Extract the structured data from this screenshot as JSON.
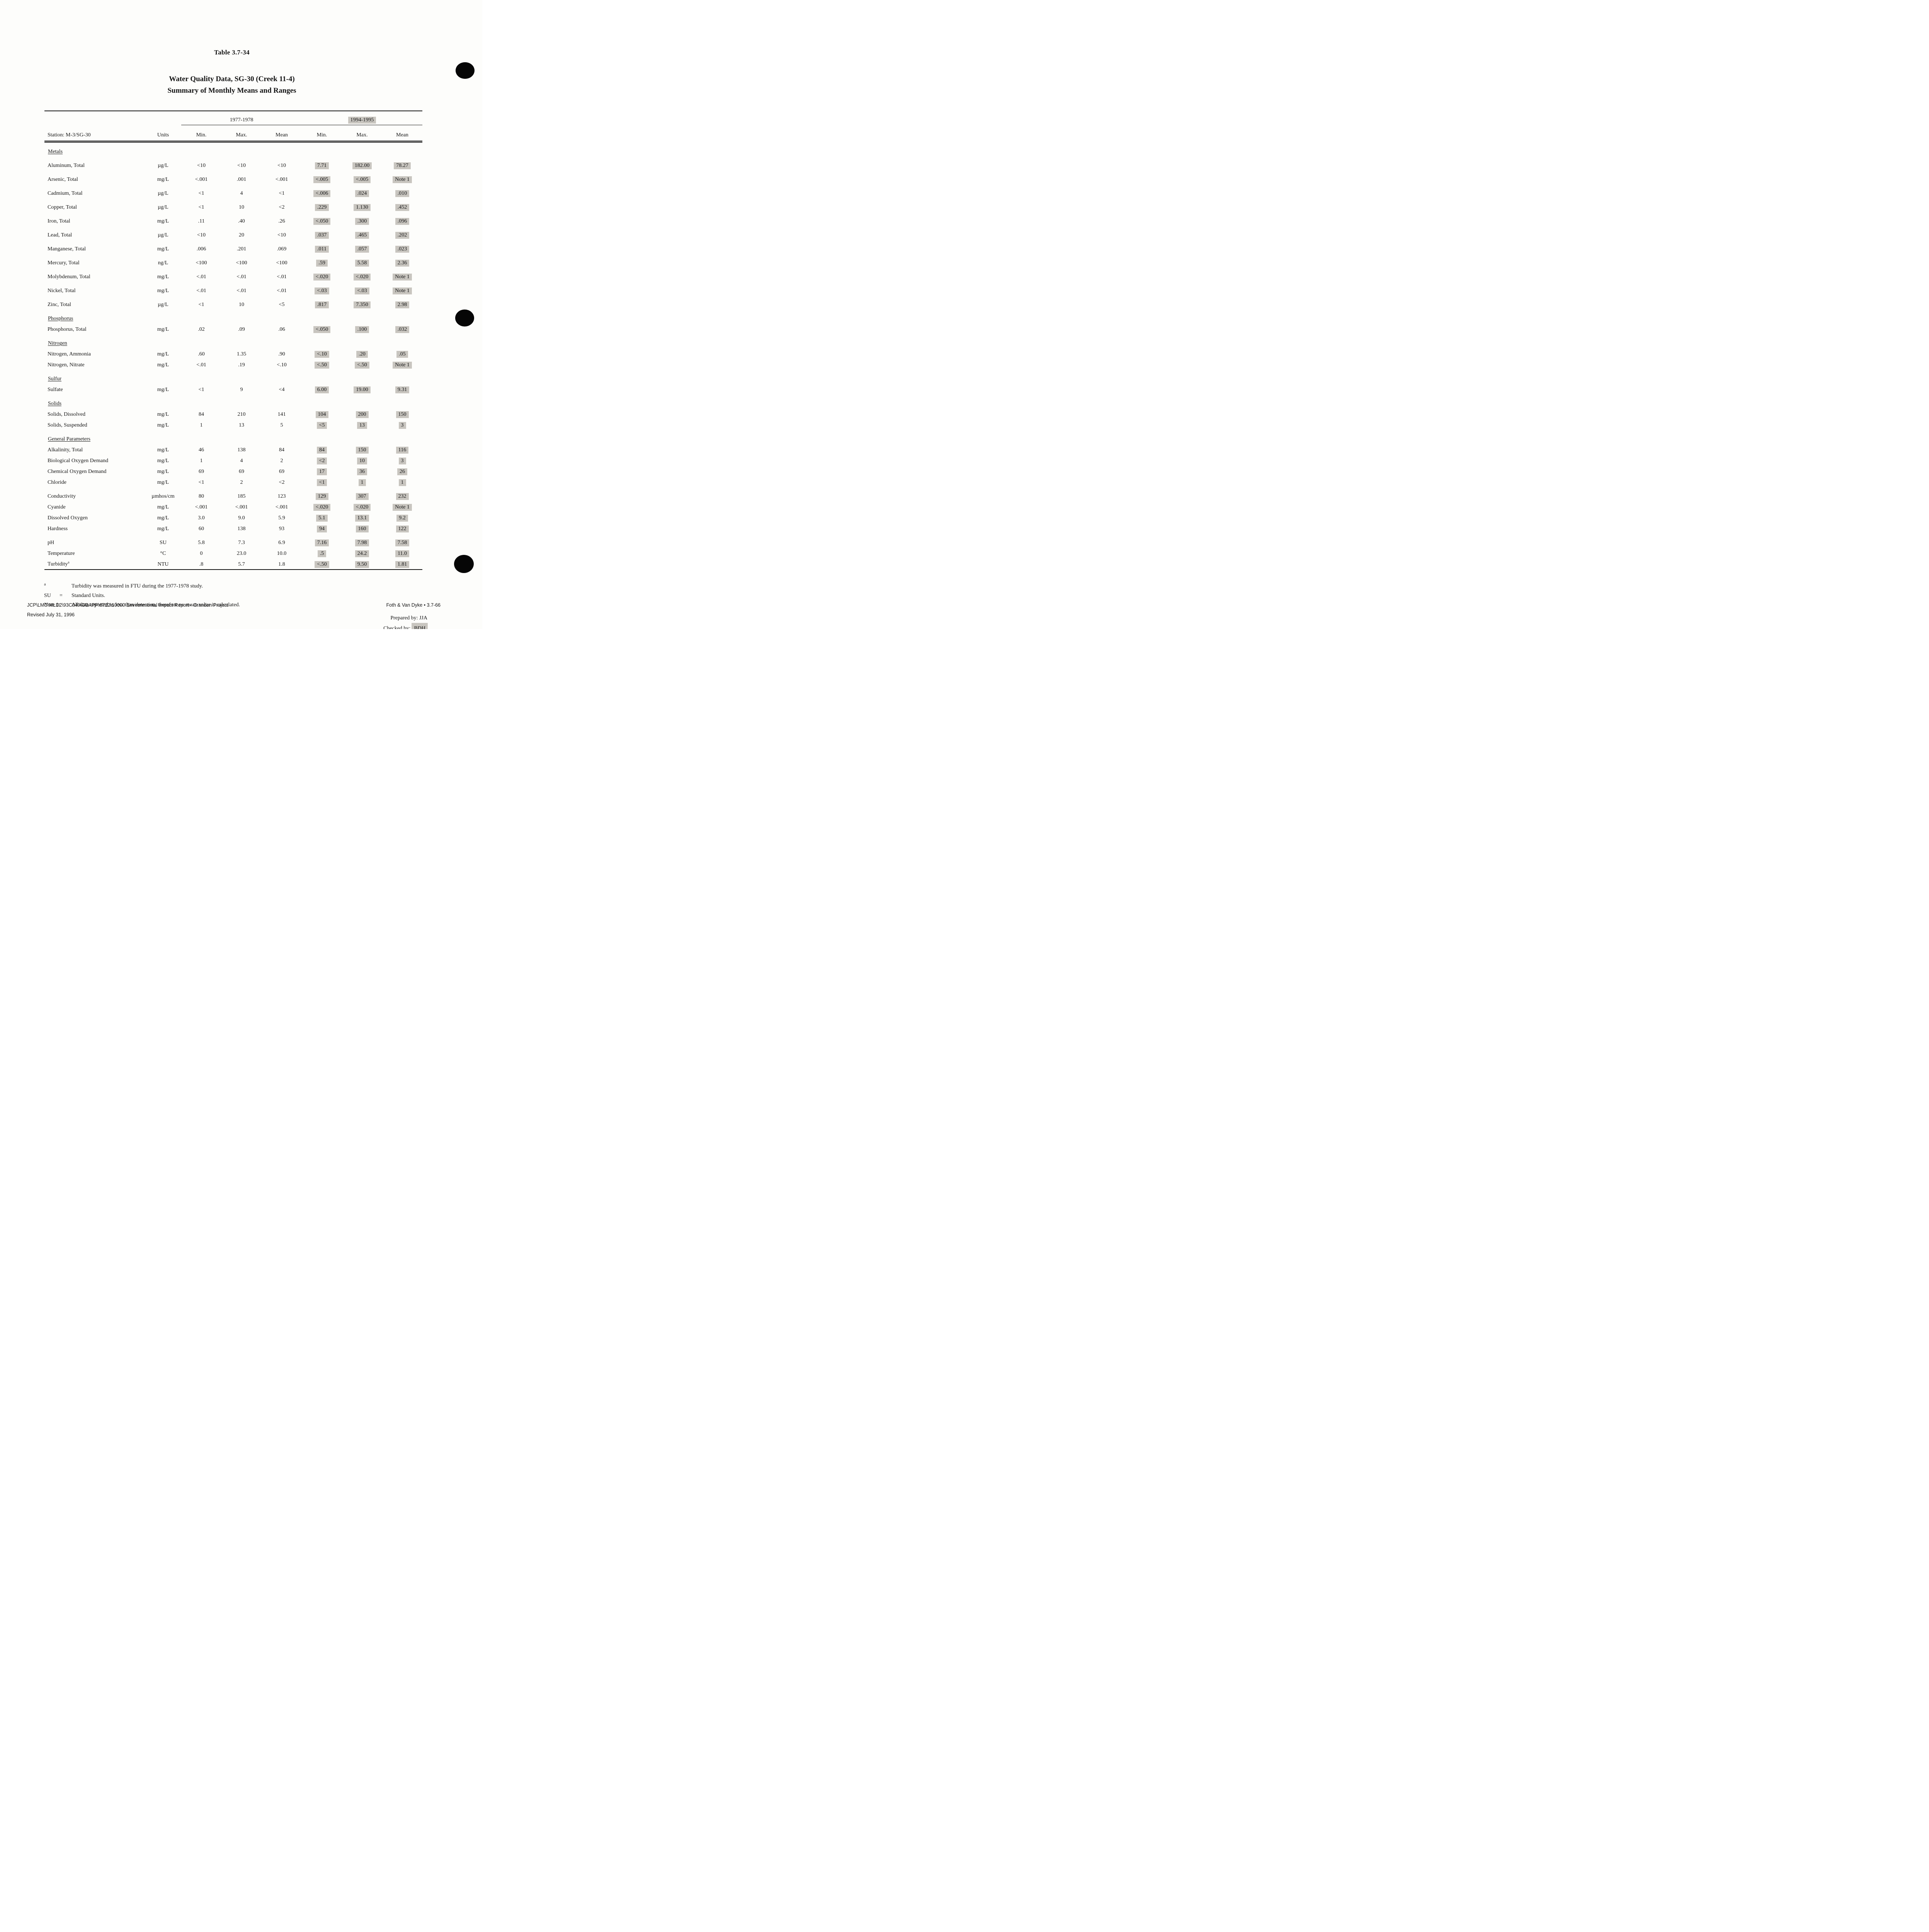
{
  "colors": {
    "paper": "#fdfdfb",
    "ink": "#141414",
    "highlight": "#c8c5bf"
  },
  "page": {
    "title": "Table 3.7-34",
    "subtitle_line1": "Water Quality Data, SG-30 (Creek 11-4)",
    "subtitle_line2": "Summary of Monthly Means and Ranges"
  },
  "table": {
    "period1": "1977-1978",
    "period2": "1994-1995",
    "station_label": "Station: M-3/SG-30",
    "units_label": "Units",
    "col_headers": [
      "Min.",
      "Max.",
      "Mean",
      "Min.",
      "Max.",
      "Mean"
    ],
    "sections": [
      {
        "name": "Metals",
        "spacing": "wide",
        "rows": [
          {
            "param": "Aluminum, Total",
            "units": "µg/L",
            "v1": [
              "<10",
              "<10",
              "<10"
            ],
            "v2": [
              "7.71",
              "182.00",
              "78.27"
            ]
          },
          {
            "param": "Arsenic, Total",
            "units": "mg/L",
            "v1": [
              "<.001",
              ".001",
              "<.001"
            ],
            "v2": [
              "<.005",
              "<.005",
              "Note 1"
            ]
          },
          {
            "param": "Cadmium, Total",
            "units": "µg/L",
            "v1": [
              "<1",
              "4",
              "<1"
            ],
            "v2": [
              "<.006",
              ".024",
              ".010"
            ]
          },
          {
            "param": "Copper, Total",
            "units": "µg/L",
            "v1": [
              "<1",
              "10",
              "<2"
            ],
            "v2": [
              ".229",
              "1.130",
              ".452"
            ]
          },
          {
            "param": "Iron, Total",
            "units": "mg/L",
            "v1": [
              ".11",
              ".40",
              ".26"
            ],
            "v2": [
              "<.050",
              ".300",
              ".096"
            ]
          },
          {
            "param": "Lead, Total",
            "units": "µg/L",
            "v1": [
              "<10",
              "20",
              "<10"
            ],
            "v2": [
              ".037",
              ".465",
              ".202"
            ]
          },
          {
            "param": "Manganese, Total",
            "units": "mg/L",
            "v1": [
              ".006",
              ".201",
              ".069"
            ],
            "v2": [
              ".011",
              ".057",
              ".023"
            ]
          },
          {
            "param": "Mercury, Total",
            "units": "ng/L",
            "v1": [
              "<100",
              "<100",
              "<100"
            ],
            "v2": [
              ".59",
              "5.58",
              "2.36"
            ]
          },
          {
            "param": "Molybdenum, Total",
            "units": "mg/L",
            "v1": [
              "<.01",
              "<.01",
              "<.01"
            ],
            "v2": [
              "<.020",
              "<.020",
              "Note 1"
            ]
          },
          {
            "param": "Nickel, Total",
            "units": "mg/L",
            "v1": [
              "<.01",
              "<.01",
              "<.01"
            ],
            "v2": [
              "<.03",
              "<.03",
              "Note 1"
            ]
          },
          {
            "param": "Zinc, Total",
            "units": "µg/L",
            "v1": [
              "<1",
              "10",
              "<5"
            ],
            "v2": [
              ".817",
              "7.350",
              "2.98"
            ]
          }
        ]
      },
      {
        "name": "Phosphorus",
        "spacing": "tight",
        "rows": [
          {
            "param": "Phosphorus, Total",
            "units": "mg/L",
            "v1": [
              ".02",
              ".09",
              ".06"
            ],
            "v2": [
              "<.050",
              ".100",
              ".032"
            ]
          }
        ]
      },
      {
        "name": "Nitrogen",
        "spacing": "tight",
        "rows": [
          {
            "param": "Nitrogen, Ammonia",
            "units": "mg/L",
            "v1": [
              ".60",
              "1.35",
              ".90"
            ],
            "v2": [
              "<.10",
              ".20",
              ".05"
            ]
          },
          {
            "param": "Nitrogen, Nitrate",
            "units": "mg/L",
            "v1": [
              "<.01",
              ".19",
              "<.10"
            ],
            "v2": [
              "<.50",
              "<.50",
              "Note 1"
            ]
          }
        ]
      },
      {
        "name": "Sulfur",
        "spacing": "tight",
        "rows": [
          {
            "param": "Sulfate",
            "units": "mg/L",
            "v1": [
              "<1",
              "9",
              "<4"
            ],
            "v2": [
              "6.00",
              "19.00",
              "9.31"
            ]
          }
        ]
      },
      {
        "name": "Solids",
        "spacing": "tight",
        "rows": [
          {
            "param": "Solids, Dissolved",
            "units": "mg/L",
            "v1": [
              "84",
              "210",
              "141"
            ],
            "v2": [
              "104",
              "200",
              "150"
            ]
          },
          {
            "param": "Solids, Suspended",
            "units": "mg/L",
            "v1": [
              "1",
              "13",
              "5"
            ],
            "v2": [
              "<5",
              "13",
              "3"
            ]
          }
        ]
      },
      {
        "name": "General Parameters",
        "spacing": "tight",
        "rows": [
          {
            "param": "Alkalinity, Total",
            "units": "mg/L",
            "v1": [
              "46",
              "138",
              "84"
            ],
            "v2": [
              "84",
              "150",
              "116"
            ]
          },
          {
            "param": "Biological Oxygen Demand",
            "units": "mg/L",
            "v1": [
              "1",
              "4",
              "2"
            ],
            "v2": [
              "<2",
              "10",
              "3"
            ]
          },
          {
            "param": "Chemical Oxygen Demand",
            "units": "mg/L",
            "v1": [
              "69",
              "69",
              "69"
            ],
            "v2": [
              "17",
              "36",
              "26"
            ]
          },
          {
            "param": "Chloride",
            "units": "mg/L",
            "v1": [
              "<1",
              "2",
              "<2"
            ],
            "v2": [
              "<1",
              "1",
              "1"
            ]
          },
          {
            "param": "Conductivity",
            "gap": true,
            "units": "µmhos/cm",
            "v1": [
              "80",
              "185",
              "123"
            ],
            "v2": [
              "129",
              "307",
              "232"
            ]
          },
          {
            "param": "Cyanide",
            "units": "mg/L",
            "v1": [
              "<.001",
              "<.001",
              "<.001"
            ],
            "v2": [
              "<.020",
              "<.020",
              "Note 1"
            ]
          },
          {
            "param": "Dissolved Oxygen",
            "units": "mg/L",
            "v1": [
              "3.0",
              "9.0",
              "5.9"
            ],
            "v2": [
              "5.1",
              "13.1",
              "9.2"
            ]
          },
          {
            "param": "Hardness",
            "units": "mg/L",
            "v1": [
              "60",
              "138",
              "93"
            ],
            "v2": [
              "94",
              "160",
              "122"
            ]
          },
          {
            "param": "pH",
            "gap": true,
            "units": "SU",
            "v1": [
              "5.8",
              "7.3",
              "6.9"
            ],
            "v2": [
              "7.16",
              "7.98",
              "7.58"
            ]
          },
          {
            "param": "Temperature",
            "units": "°C",
            "v1": [
              "0",
              "23.0",
              "10.0"
            ],
            "v2": [
              ".5",
              "24.2",
              "11.0"
            ]
          },
          {
            "param": "Turbidity",
            "sup": "a",
            "units": "NTU",
            "v1": [
              ".8",
              "5.7",
              "1.8"
            ],
            "v2": [
              "<.50",
              "9.50",
              "1.81"
            ]
          }
        ]
      }
    ]
  },
  "footnotes": {
    "a_marker": "a",
    "a_text": "Turbidity was measured in FTU during the 1977-1978 study.",
    "su_marker": "SU",
    "su_eq": "=",
    "su_text": "Standard Units.",
    "note1_marker": "Note 1:",
    "note1_text": "All data reported as less than detection, therefore no mean value is calculated."
  },
  "signoff": {
    "prepared": "Prepared by: JJA",
    "checked_label": "Checked by:",
    "checked_value": "BDH"
  },
  "footer": {
    "left_line1": "JCP\\LMC\\MLD2\\93C049\\GBAPP\\6722\\10000  Environmental Impact Report - Crandon Project",
    "left_line2": "Revised July 31, 1996",
    "right": "Foth & Van Dyke • 3.7-66"
  }
}
